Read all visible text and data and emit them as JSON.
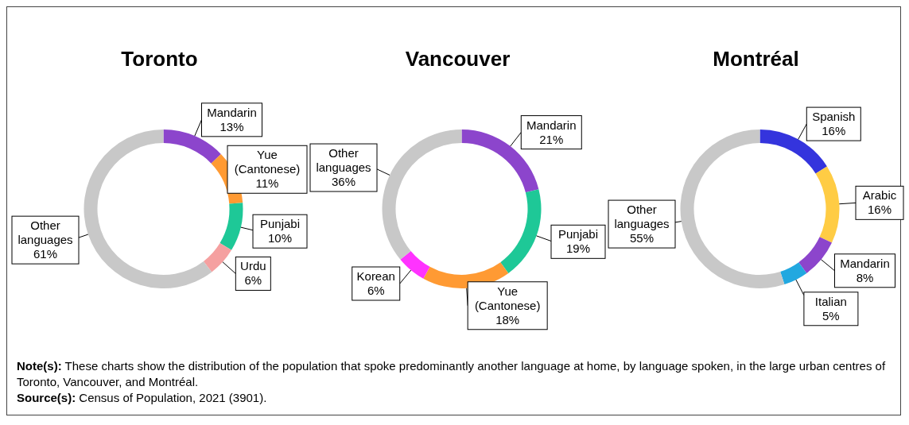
{
  "chart_data": [
    {
      "type": "donut",
      "title": "Toronto",
      "categories": [
        "Mandarin",
        "Yue (Cantonese)",
        "Punjabi",
        "Urdu",
        "Other languages"
      ],
      "values": [
        13,
        11,
        10,
        6,
        61
      ],
      "value_labels": [
        "13%",
        "11%",
        "10%",
        "6%",
        "61%"
      ],
      "colors": [
        "#8c45cc",
        "#ff9a33",
        "#1ec897",
        "#f5a0a0",
        "#c8c8c8"
      ],
      "annotations": [
        "Note(s): These charts show the distribution of the population that spoke predominantly another language at home, by language spoken, in the large urban centres of Toronto, Vancouver, and Montréal.",
        "Source(s): Census of Population, 2021 (3901)."
      ]
    },
    {
      "type": "donut",
      "title": "Vancouver",
      "categories": [
        "Mandarin",
        "Punjabi",
        "Yue (Cantonese)",
        "Korean",
        "Other languages"
      ],
      "values": [
        21,
        19,
        18,
        6,
        36
      ],
      "value_labels": [
        "21%",
        "19%",
        "18%",
        "6%",
        "36%"
      ],
      "colors": [
        "#8c45cc",
        "#1ec897",
        "#ff9a33",
        "#ff33ff",
        "#c8c8c8"
      ]
    },
    {
      "type": "donut",
      "title": "Montréal",
      "categories": [
        "Spanish",
        "Arabic",
        "Mandarin",
        "Italian",
        "Other languages"
      ],
      "values": [
        16,
        16,
        8,
        5,
        55
      ],
      "value_labels": [
        "16%",
        "16%",
        "8%",
        "5%",
        "55%"
      ],
      "colors": [
        "#3434dd",
        "#ffcc44",
        "#8c45cc",
        "#22a8e0",
        "#c8c8c8"
      ]
    }
  ]
}
